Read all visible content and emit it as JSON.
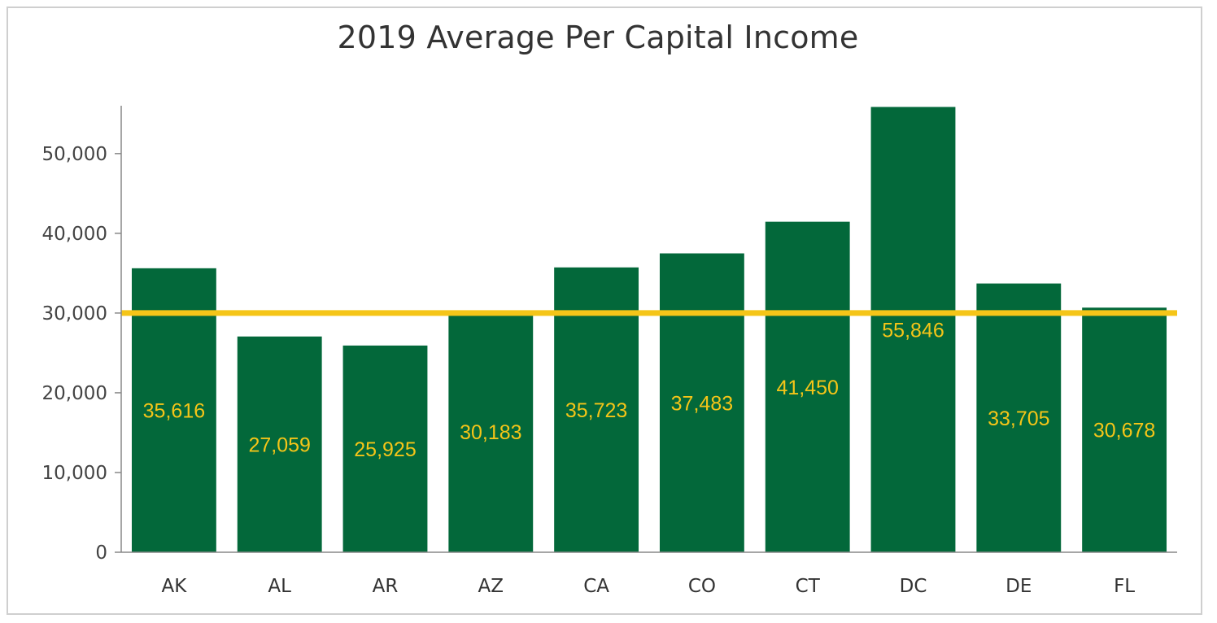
{
  "chart_data": {
    "type": "bar",
    "title": "2019 Average Per Capital Income",
    "categories": [
      "AK",
      "AL",
      "AR",
      "AZ",
      "CA",
      "CO",
      "CT",
      "DC",
      "DE",
      "FL"
    ],
    "values": [
      35616,
      27059,
      25925,
      30183,
      35723,
      37483,
      41450,
      55846,
      33705,
      30678
    ],
    "data_labels": [
      "35,616",
      "27,059",
      "25,925",
      "30,183",
      "35,723",
      "37,483",
      "41,450",
      "55,846",
      "33,705",
      "30,678"
    ],
    "yticks": [
      0,
      10000,
      20000,
      30000,
      40000,
      50000
    ],
    "ytick_labels": [
      "0",
      "10,000",
      "20,000",
      "30,000",
      "40,000",
      "50,000"
    ],
    "ylim": [
      0,
      56000
    ],
    "reference_line": 30000,
    "xlabel": "",
    "ylabel": "",
    "grid": false,
    "legend": "none",
    "colors": {
      "bar": "#03683a",
      "label": "#f5c518",
      "reference": "#f5c518",
      "axis": "#888888"
    }
  }
}
